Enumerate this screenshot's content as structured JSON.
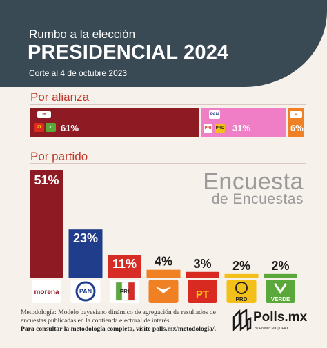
{
  "header": {
    "subtitle": "Rumbo a la elección",
    "title": "PRESIDENCIAL 2024",
    "cutoff": "Corte al 4 de octubre 2023"
  },
  "watermark": {
    "line1": "Encuesta",
    "line2": "de Encuestas"
  },
  "footer": {
    "methodology": "Metodología: Modelo bayesiano dinámico de agregación de resultados de encuestas publicadas en la contienda electoral de interés.",
    "link_text": "Para consultar la metodología completa, visite polls.mx/metodología/."
  },
  "brand": {
    "name": "Polls.mx",
    "sub": "by Político MX  |  UPAX"
  },
  "colors": {
    "morena": "#8e1b24",
    "pan": "#1f3d8a",
    "pri": "#d72b26",
    "mc": "#f08024",
    "pt": "#d92a22",
    "prd": "#f2c018",
    "verde": "#5aa83a",
    "alliance_pan": "#f07ec6"
  },
  "chart_data": [
    {
      "type": "bar",
      "title": "Por alianza",
      "orientation": "horizontal-stacked",
      "categories": [
        "Morena-PT-Verde",
        "PAN-PRI-PRD",
        "MC"
      ],
      "values": [
        61,
        31,
        6
      ],
      "value_labels": [
        "61%",
        "31%",
        "6%"
      ],
      "logos": [
        [
          "morena",
          "PT",
          "VERDE"
        ],
        [
          "PAN",
          "PRI",
          "PRD"
        ],
        [
          "MC"
        ]
      ]
    },
    {
      "type": "bar",
      "title": "Por partido",
      "categories": [
        "morena",
        "PAN",
        "PRI",
        "MC",
        "PT",
        "PRD",
        "VERDE"
      ],
      "values": [
        51,
        23,
        11,
        4,
        3,
        2,
        2
      ],
      "value_labels": [
        "51%",
        "23%",
        "11%",
        "4%",
        "3%",
        "2%",
        "2%"
      ],
      "ylim": [
        0,
        51
      ]
    }
  ]
}
